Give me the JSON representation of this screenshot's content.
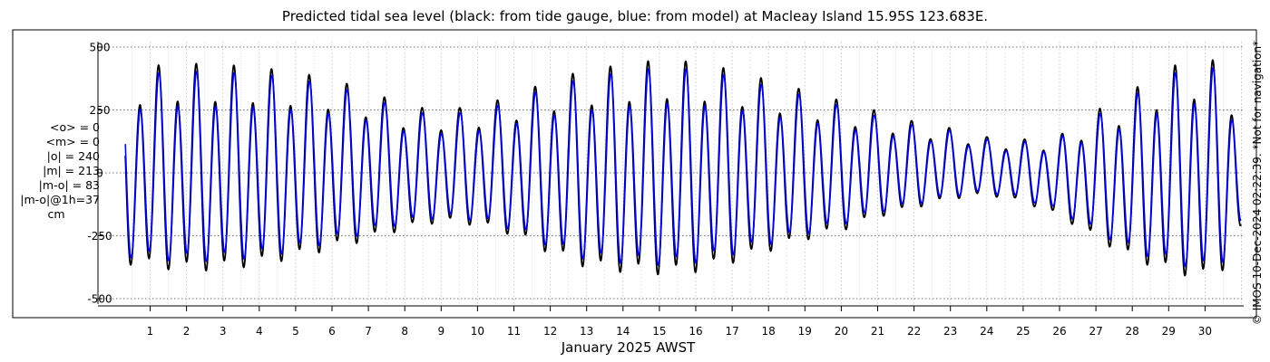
{
  "chart_data": {
    "type": "line",
    "title": "Predicted tidal sea level (black: from tide gauge, blue: from model) at Macleay Island 15.95S 123.683E.",
    "xlabel": "January 2025 AWST",
    "ylabel": "",
    "xlim": [
      0.2,
      31
    ],
    "ylim": [
      -550,
      550
    ],
    "yticks": [
      500,
      250,
      0,
      -250,
      -500
    ],
    "ytick_labels": [
      "500",
      "250",
      "0",
      "-250",
      "-500"
    ],
    "xticks": [
      "1",
      "2",
      "3",
      "4",
      "5",
      "6",
      "7",
      "8",
      "9",
      "10",
      "11",
      "12",
      "13",
      "14",
      "15",
      "16",
      "17",
      "18",
      "19",
      "20",
      "21",
      "22",
      "23",
      "24",
      "25",
      "26",
      "27",
      "28",
      "29",
      "30"
    ],
    "grid": true,
    "stats": [
      "<o> = 0",
      "<m> = 0",
      "|o| = 240",
      "|m| = 213",
      "|m-o| = 83",
      "|m-o|@1h=37"
    ],
    "stats_unit": "cm",
    "credit": "© IMOS 10-Dec-2024 02:22:39. *Not for navigation*",
    "period_hours": 12.42,
    "series": [
      {
        "name": "from tide gauge",
        "color": "#000000",
        "envelope": {
          "day": [
            0.2,
            1,
            2,
            3,
            4,
            5,
            6,
            7,
            8,
            9,
            10,
            11,
            12,
            13,
            14,
            15,
            15.5,
            16,
            17,
            18,
            19,
            20,
            21,
            22,
            23,
            24,
            25,
            26,
            27,
            28,
            29,
            30,
            30.5,
            31
          ],
          "high": [
            380,
            415,
            425,
            420,
            410,
            390,
            365,
            320,
            260,
            245,
            260,
            300,
            360,
            400,
            420,
            440,
            435,
            430,
            400,
            360,
            320,
            280,
            240,
            200,
            175,
            140,
            130,
            145,
            240,
            320,
            410,
            450,
            420,
            250
          ],
          "low": [
            -400,
            -420,
            -435,
            -430,
            -410,
            -380,
            -340,
            -300,
            -250,
            -220,
            -235,
            -280,
            -360,
            -420,
            -440,
            -450,
            -450,
            -440,
            -400,
            -350,
            -300,
            -260,
            -200,
            -160,
            -120,
            -100,
            -130,
            -190,
            -290,
            -380,
            -440,
            -470,
            -430,
            -250
          ]
        }
      },
      {
        "name": "from model",
        "color": "#0000ff",
        "envelope": {
          "day": [
            0.2,
            1,
            2,
            3,
            4,
            5,
            6,
            7,
            8,
            9,
            10,
            11,
            12,
            13,
            14,
            15,
            15.5,
            16,
            17,
            18,
            19,
            20,
            21,
            22,
            23,
            24,
            25,
            26,
            27,
            28,
            29,
            30,
            30.5,
            31
          ],
          "high": [
            355,
            385,
            395,
            390,
            385,
            365,
            340,
            300,
            240,
            225,
            240,
            280,
            335,
            370,
            390,
            410,
            405,
            400,
            375,
            335,
            300,
            260,
            220,
            185,
            165,
            130,
            120,
            135,
            220,
            295,
            380,
            420,
            390,
            230
          ],
          "low": [
            -370,
            -385,
            -395,
            -390,
            -375,
            -350,
            -310,
            -270,
            -225,
            -200,
            -215,
            -255,
            -330,
            -385,
            -400,
            -410,
            -410,
            -400,
            -365,
            -320,
            -275,
            -235,
            -180,
            -145,
            -110,
            -90,
            -115,
            -170,
            -260,
            -345,
            -400,
            -430,
            -395,
            -230
          ]
        }
      }
    ]
  }
}
